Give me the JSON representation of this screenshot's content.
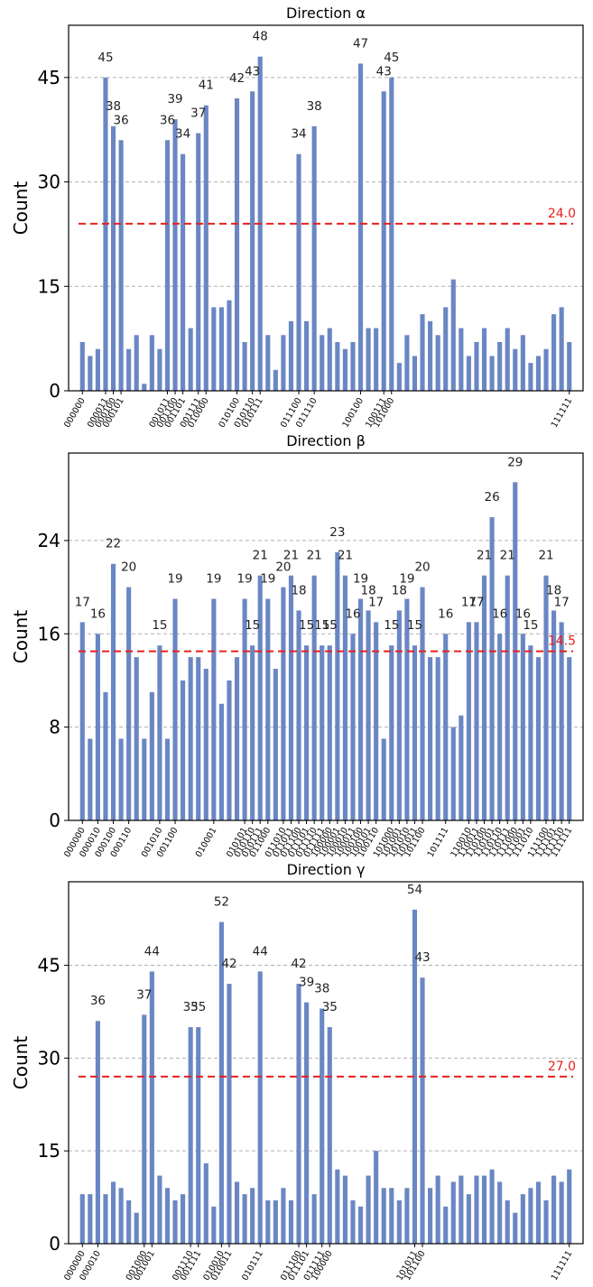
{
  "chart_data": [
    {
      "type": "bar",
      "title": "Direction α",
      "ylabel": "Count",
      "ylim": [
        0,
        52.5
      ],
      "yticks": [
        0,
        15,
        30,
        45
      ],
      "color": "#6a87c4",
      "threshold": {
        "value": 24.0,
        "label": "24.0",
        "color": "#e8201e"
      },
      "grid": "horizontal dashed",
      "values": [
        7,
        5,
        6,
        45,
        38,
        36,
        6,
        8,
        1,
        8,
        6,
        36,
        39,
        34,
        9,
        37,
        41,
        12,
        12,
        13,
        42,
        7,
        43,
        48,
        8,
        3,
        8,
        10,
        34,
        10,
        38,
        8,
        9,
        7,
        6,
        7,
        47,
        9,
        9,
        43,
        45,
        4,
        8,
        5,
        11,
        10,
        8,
        12,
        16,
        9,
        5,
        7,
        9,
        5,
        7,
        9,
        6,
        8,
        4,
        5,
        6,
        11,
        12,
        7
      ],
      "labeled": [
        3,
        4,
        5,
        11,
        12,
        13,
        15,
        16,
        20,
        22,
        23,
        28,
        30,
        36,
        39,
        40
      ],
      "xtick_labels": [
        [
          0,
          "000000"
        ],
        [
          3,
          "000011"
        ],
        [
          4,
          "000100"
        ],
        [
          5,
          "000101"
        ],
        [
          11,
          "001011"
        ],
        [
          12,
          "001100"
        ],
        [
          13,
          "001101"
        ],
        [
          15,
          "001111"
        ],
        [
          16,
          "010000"
        ],
        [
          20,
          "010100"
        ],
        [
          22,
          "010110"
        ],
        [
          23,
          "010111"
        ],
        [
          28,
          "011100"
        ],
        [
          30,
          "011110"
        ],
        [
          36,
          "100100"
        ],
        [
          39,
          "100111"
        ],
        [
          40,
          "101000"
        ],
        [
          63,
          "111111"
        ]
      ]
    },
    {
      "type": "bar",
      "title": "Direction β",
      "ylabel": "Count",
      "ylim": [
        0,
        31.5
      ],
      "yticks": [
        0,
        8,
        16,
        24
      ],
      "color": "#6a87c4",
      "threshold": {
        "value": 14.5,
        "label": "14.5",
        "color": "#e8201e"
      },
      "grid": "horizontal dashed",
      "values": [
        17,
        7,
        16,
        11,
        22,
        7,
        20,
        14,
        7,
        11,
        15,
        7,
        19,
        12,
        14,
        14,
        13,
        19,
        10,
        12,
        14,
        19,
        15,
        21,
        19,
        13,
        20,
        21,
        18,
        15,
        21,
        15,
        15,
        23,
        21,
        16,
        19,
        18,
        17,
        7,
        15,
        18,
        19,
        15,
        20,
        14,
        14,
        16,
        8,
        9,
        17,
        17,
        21,
        26,
        16,
        21,
        29,
        16,
        15,
        14,
        21,
        18,
        17,
        14
      ],
      "labeled": [
        0,
        2,
        4,
        6,
        10,
        12,
        17,
        21,
        22,
        23,
        24,
        26,
        27,
        28,
        29,
        30,
        31,
        32,
        33,
        34,
        35,
        36,
        37,
        38,
        40,
        41,
        42,
        43,
        44,
        47,
        50,
        51,
        52,
        53,
        54,
        55,
        56,
        57,
        58,
        60,
        61,
        62
      ],
      "xtick_labels": [
        [
          0,
          "000000"
        ],
        [
          2,
          "000010"
        ],
        [
          4,
          "000100"
        ],
        [
          6,
          "000110"
        ],
        [
          10,
          "001010"
        ],
        [
          12,
          "001100"
        ],
        [
          17,
          "010001"
        ],
        [
          21,
          "010101"
        ],
        [
          22,
          "010110"
        ],
        [
          23,
          "010111"
        ],
        [
          24,
          "011000"
        ],
        [
          26,
          "011010"
        ],
        [
          27,
          "011011"
        ],
        [
          28,
          "011100"
        ],
        [
          29,
          "011101"
        ],
        [
          30,
          "011110"
        ],
        [
          31,
          "011111"
        ],
        [
          32,
          "100000"
        ],
        [
          33,
          "100001"
        ],
        [
          34,
          "100010"
        ],
        [
          35,
          "100011"
        ],
        [
          36,
          "100100"
        ],
        [
          37,
          "100101"
        ],
        [
          38,
          "100110"
        ],
        [
          40,
          "101000"
        ],
        [
          41,
          "101001"
        ],
        [
          42,
          "101010"
        ],
        [
          43,
          "101011"
        ],
        [
          44,
          "101100"
        ],
        [
          47,
          "101111"
        ],
        [
          50,
          "110010"
        ],
        [
          51,
          "110011"
        ],
        [
          52,
          "110100"
        ],
        [
          53,
          "110101"
        ],
        [
          54,
          "110110"
        ],
        [
          55,
          "110111"
        ],
        [
          56,
          "111000"
        ],
        [
          57,
          "111001"
        ],
        [
          58,
          "111010"
        ],
        [
          60,
          "111100"
        ],
        [
          61,
          "111101"
        ],
        [
          62,
          "111110"
        ],
        [
          63,
          "111111"
        ]
      ]
    },
    {
      "type": "bar",
      "title": "Direction γ",
      "ylabel": "Count",
      "ylim": [
        0,
        58.5
      ],
      "yticks": [
        0,
        15,
        30,
        45
      ],
      "color": "#6a87c4",
      "threshold": {
        "value": 27.0,
        "label": "27.0",
        "color": "#e8201e"
      },
      "grid": "horizontal dashed",
      "values": [
        8,
        8,
        36,
        8,
        10,
        9,
        7,
        5,
        37,
        44,
        11,
        9,
        7,
        8,
        35,
        35,
        13,
        6,
        52,
        42,
        10,
        8,
        9,
        44,
        7,
        7,
        9,
        7,
        42,
        39,
        8,
        38,
        35,
        12,
        11,
        7,
        6,
        11,
        15,
        9,
        9,
        7,
        9,
        54,
        43,
        9,
        11,
        6,
        10,
        11,
        8,
        11,
        11,
        12,
        10,
        7,
        5,
        8,
        9,
        10,
        7,
        11,
        10,
        12
      ],
      "labeled": [
        2,
        8,
        9,
        14,
        15,
        18,
        19,
        23,
        28,
        29,
        31,
        32,
        43,
        44
      ],
      "xtick_labels": [
        [
          0,
          "000000"
        ],
        [
          2,
          "000010"
        ],
        [
          8,
          "001000"
        ],
        [
          9,
          "001001"
        ],
        [
          14,
          "001110"
        ],
        [
          15,
          "001111"
        ],
        [
          18,
          "010010"
        ],
        [
          19,
          "010011"
        ],
        [
          23,
          "010111"
        ],
        [
          28,
          "011100"
        ],
        [
          29,
          "011101"
        ],
        [
          31,
          "011111"
        ],
        [
          32,
          "100000"
        ],
        [
          43,
          "101011"
        ],
        [
          44,
          "101100"
        ],
        [
          63,
          "111111"
        ]
      ]
    }
  ]
}
